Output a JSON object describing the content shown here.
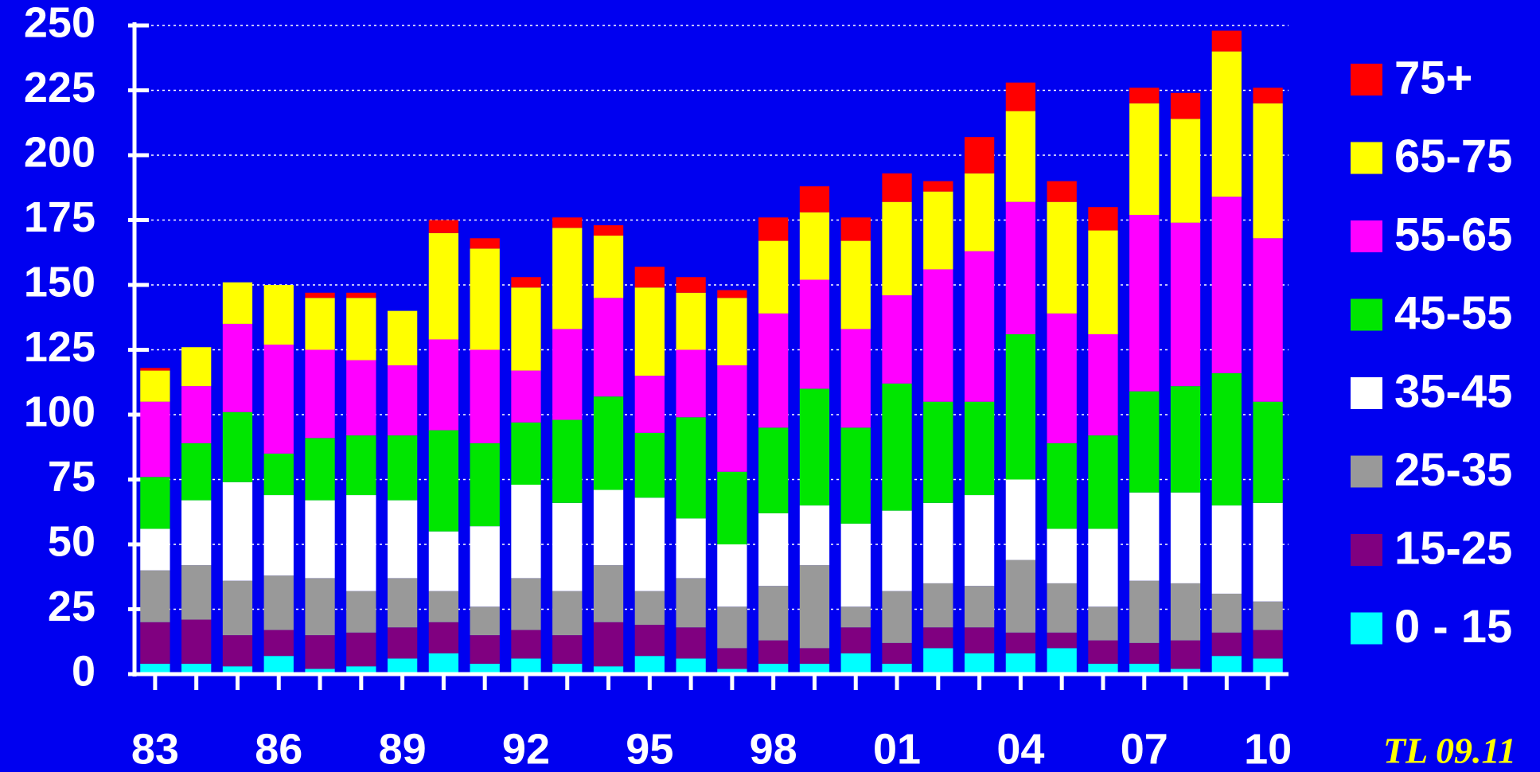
{
  "chart_data": {
    "type": "stacked-bar",
    "categories": [
      "83",
      null,
      null,
      "86",
      null,
      null,
      "89",
      null,
      null,
      "92",
      null,
      null,
      "95",
      null,
      null,
      "98",
      null,
      null,
      "01",
      null,
      null,
      "04",
      null,
      null,
      "07",
      null,
      null,
      "10"
    ],
    "series": [
      {
        "name": "0 - 15",
        "color": "#00ffff",
        "values": [
          4,
          4,
          3,
          7,
          2,
          3,
          6,
          8,
          4,
          6,
          4,
          3,
          7,
          6,
          2,
          4,
          4,
          8,
          4,
          10,
          8,
          8,
          10,
          4,
          4,
          2,
          7,
          6
        ]
      },
      {
        "name": "15-25",
        "color": "#800080",
        "values": [
          16,
          17,
          12,
          10,
          13,
          13,
          12,
          12,
          11,
          11,
          11,
          17,
          12,
          12,
          8,
          9,
          6,
          10,
          8,
          8,
          10,
          8,
          6,
          9,
          8,
          11,
          9,
          11
        ]
      },
      {
        "name": "25-35",
        "color": "#999999",
        "values": [
          20,
          21,
          21,
          21,
          22,
          16,
          19,
          12,
          11,
          20,
          17,
          22,
          13,
          19,
          16,
          21,
          32,
          8,
          20,
          17,
          16,
          28,
          19,
          13,
          24,
          22,
          15,
          11
        ]
      },
      {
        "name": "35-45",
        "color": "#ffffff",
        "values": [
          16,
          25,
          38,
          31,
          30,
          37,
          30,
          23,
          31,
          36,
          34,
          29,
          36,
          23,
          24,
          28,
          23,
          32,
          31,
          31,
          35,
          31,
          21,
          30,
          34,
          35,
          34,
          38
        ]
      },
      {
        "name": "45-55",
        "color": "#00e600",
        "values": [
          20,
          22,
          27,
          16,
          24,
          23,
          25,
          39,
          32,
          24,
          32,
          36,
          25,
          39,
          28,
          33,
          45,
          37,
          49,
          39,
          36,
          56,
          33,
          36,
          39,
          41,
          51,
          39
        ]
      },
      {
        "name": "55-65",
        "color": "#ff00ff",
        "values": [
          29,
          22,
          34,
          42,
          34,
          29,
          27,
          35,
          36,
          20,
          35,
          38,
          22,
          26,
          41,
          44,
          42,
          38,
          34,
          51,
          58,
          51,
          50,
          39,
          68,
          63,
          68,
          63
        ]
      },
      {
        "name": "65-75",
        "color": "#ffff00",
        "values": [
          12,
          15,
          16,
          23,
          20,
          24,
          21,
          41,
          39,
          32,
          39,
          24,
          34,
          22,
          26,
          28,
          26,
          34,
          36,
          30,
          30,
          35,
          43,
          40,
          43,
          40,
          56,
          52
        ]
      },
      {
        "name": "75+",
        "color": "#ff0000",
        "values": [
          1,
          0,
          0,
          0,
          2,
          2,
          0,
          5,
          4,
          4,
          4,
          4,
          8,
          6,
          3,
          9,
          10,
          9,
          11,
          4,
          14,
          11,
          8,
          9,
          6,
          10,
          8,
          6
        ]
      }
    ],
    "ylim": [
      0,
      250
    ],
    "yticks": [
      0,
      25,
      50,
      75,
      100,
      125,
      150,
      175,
      200,
      225,
      250
    ],
    "grid": true,
    "legend": "right",
    "annotation": "TL 09.11"
  }
}
